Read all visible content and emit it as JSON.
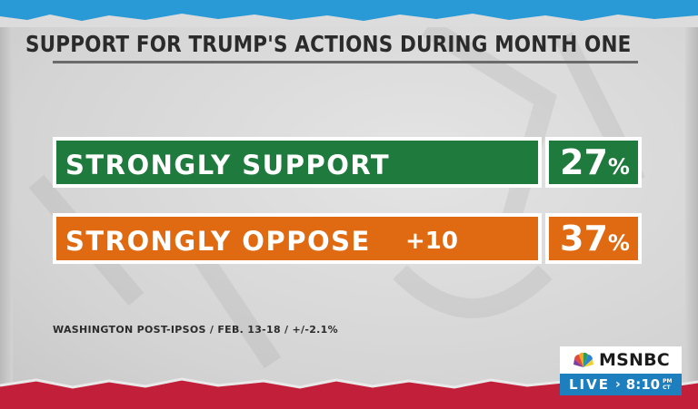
{
  "title": "SUPPORT FOR TRUMP'S ACTIONS DURING MONTH ONE",
  "source": "WASHINGTON POST-IPSOS / FEB. 13-18 / +/-2.1%",
  "colors": {
    "support": "#1f7a3d",
    "oppose": "#e06a12",
    "live_bar": "#1e7fbf",
    "top_strip": "#2a9ad6",
    "bottom_strip": "#c2203a"
  },
  "chart_data": {
    "type": "bar",
    "title": "SUPPORT FOR TRUMP'S ACTIONS DURING MONTH ONE",
    "categories": [
      "STRONGLY SUPPORT",
      "STRONGLY OPPOSE"
    ],
    "values": [
      27,
      37
    ],
    "unit": "%",
    "rows": [
      {
        "label": "STRONGLY SUPPORT",
        "value_text": "27",
        "unit": "%",
        "difference": "",
        "color": "#1f7a3d"
      },
      {
        "label": "STRONGLY OPPOSE",
        "value_text": "37",
        "unit": "%",
        "difference": "+10",
        "color": "#e06a12"
      }
    ]
  },
  "network_bug": {
    "logo": "MSNBC",
    "logo_icon": "peacock-icon",
    "live": "LIVE",
    "arrow": "›",
    "time": "8:10",
    "ampm": "PM",
    "timezone": "CT"
  }
}
